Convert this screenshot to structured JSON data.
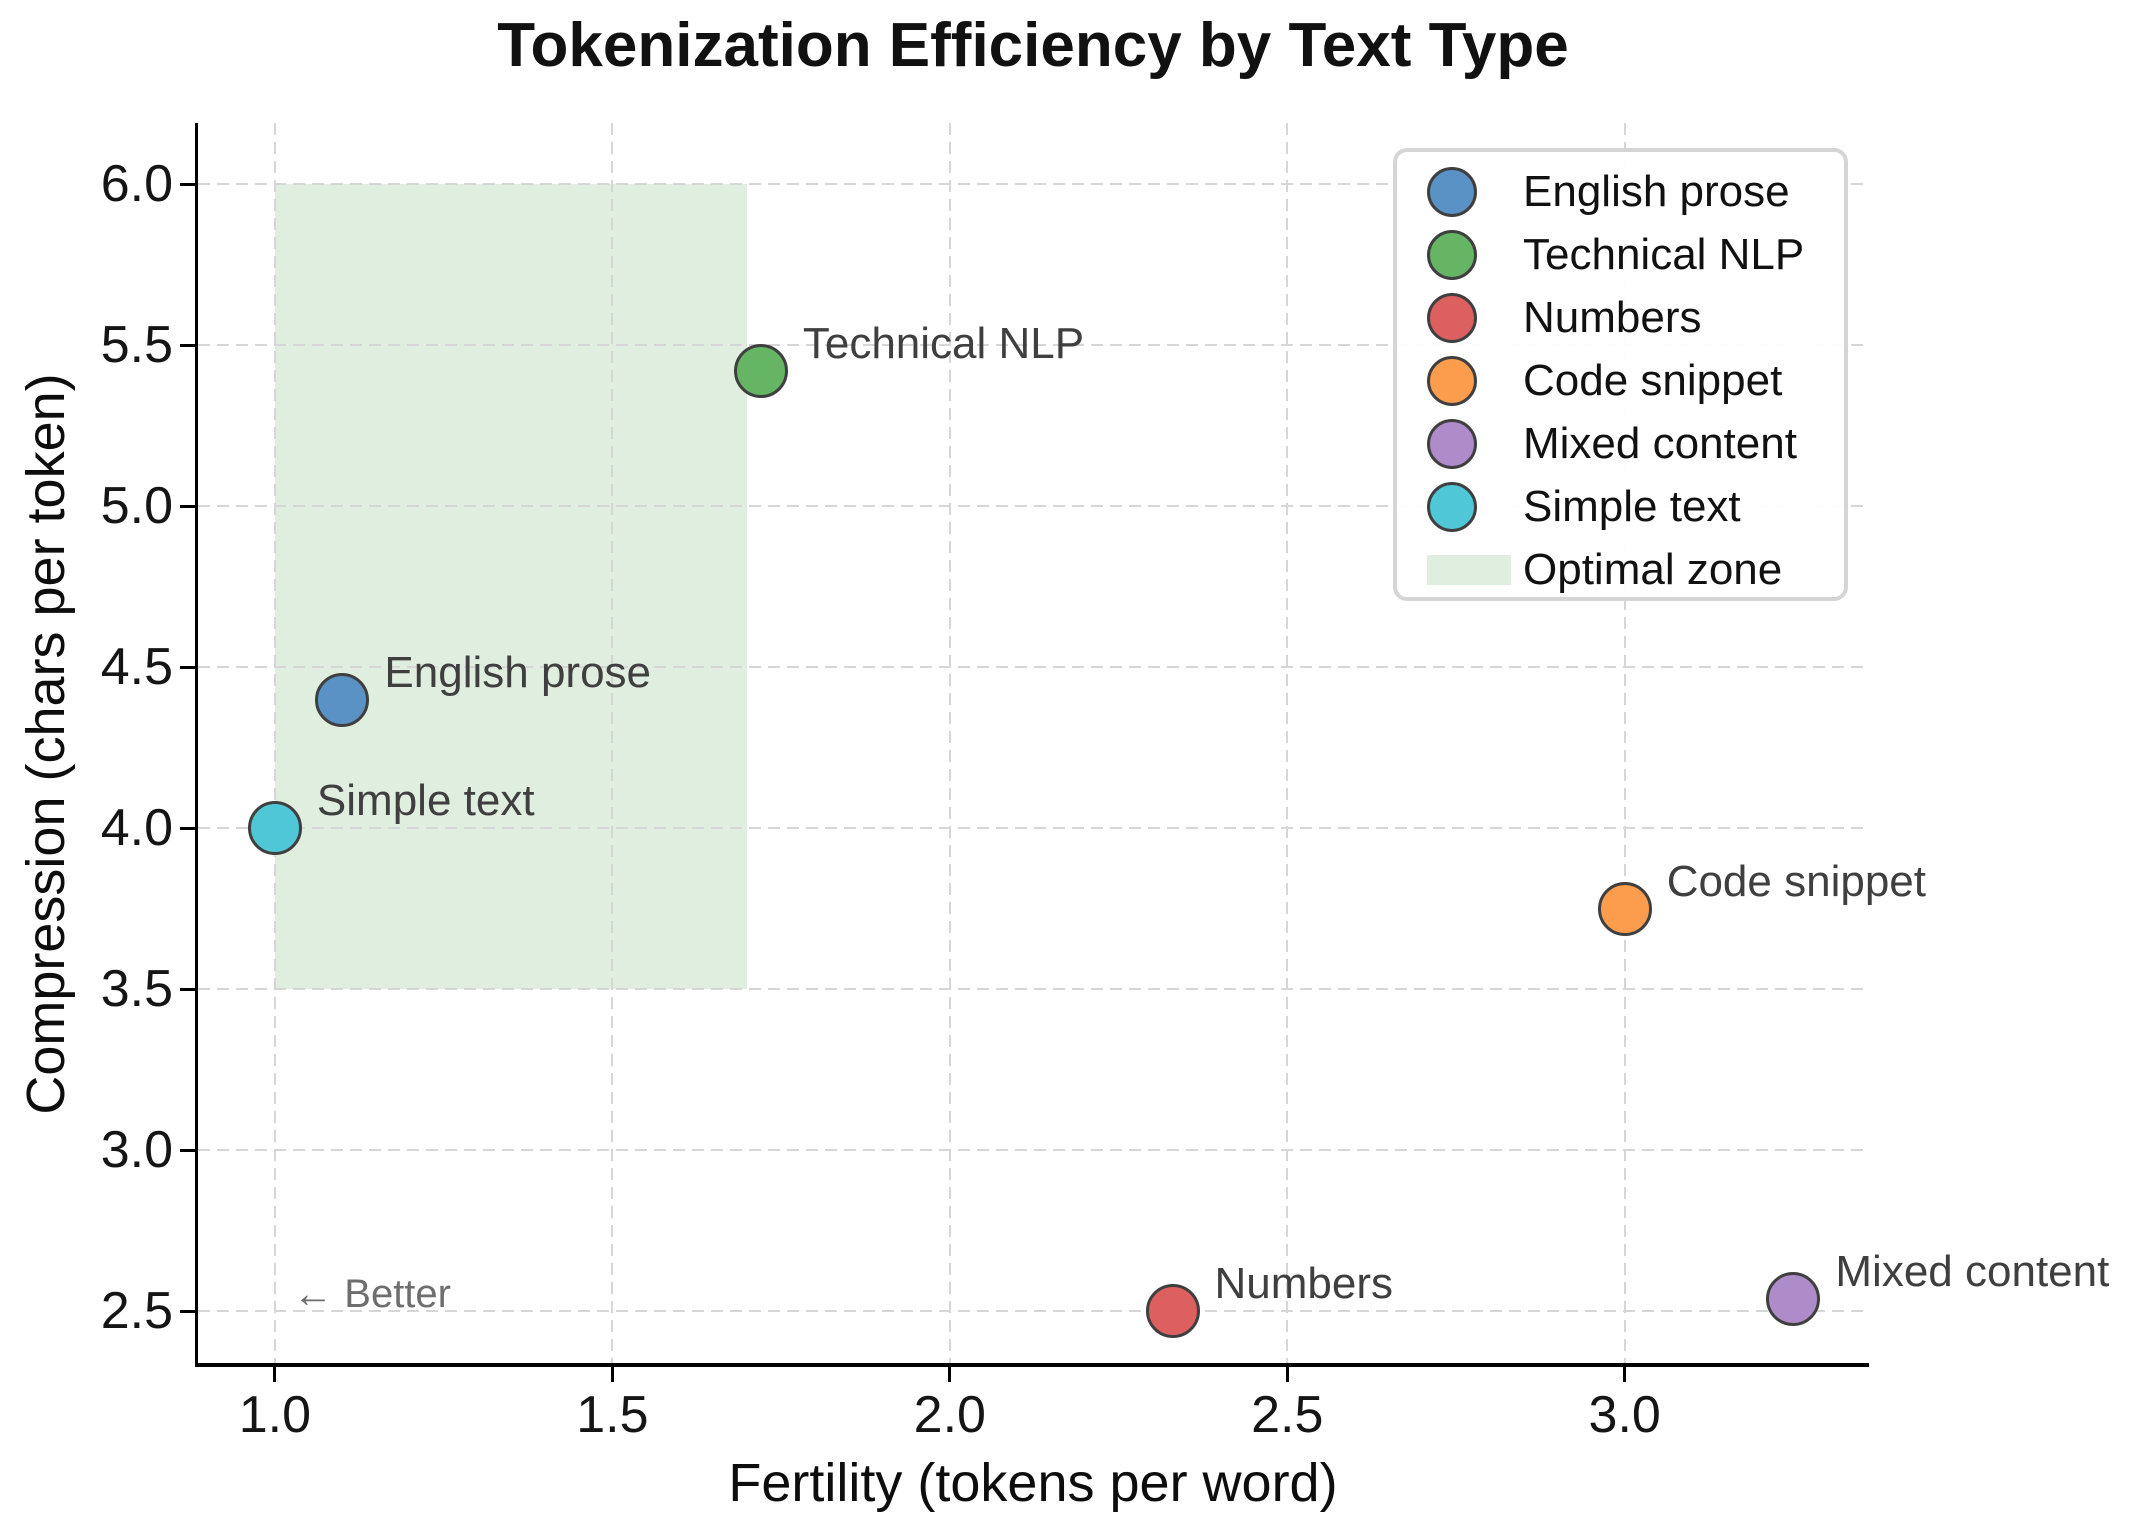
{
  "chart_data": {
    "type": "scatter",
    "title": "Tokenization Efficiency by Text Type",
    "xlabel": "Fertility (tokens per word)",
    "ylabel": "Compression (chars per token)",
    "xlim": [
      0.886,
      3.362
    ],
    "ylim": [
      2.34,
      6.19
    ],
    "x_ticks": [
      1.0,
      1.5,
      2.0,
      2.5,
      3.0
    ],
    "y_ticks": [
      2.5,
      3.0,
      3.5,
      4.0,
      4.5,
      5.0,
      5.5,
      6.0
    ],
    "grid": true,
    "grid_style": "dashed",
    "legend_position": "upper right",
    "points": [
      {
        "label": "English prose",
        "x": 1.1,
        "y": 4.4,
        "color": "#5b92c5"
      },
      {
        "label": "Technical NLP",
        "x": 1.72,
        "y": 5.42,
        "color": "#65b565"
      },
      {
        "label": "Numbers",
        "x": 2.33,
        "y": 2.5,
        "color": "#dc6060"
      },
      {
        "label": "Code snippet",
        "x": 3.0,
        "y": 3.75,
        "color": "#fb9d4c"
      },
      {
        "label": "Mixed content",
        "x": 3.25,
        "y": 2.54,
        "color": "#ae8cca"
      },
      {
        "label": "Simple text",
        "x": 1.0,
        "y": 4.0,
        "color": "#50c7d7"
      }
    ],
    "optimal_zone": {
      "label": "Optimal zone",
      "x0": 1.0,
      "x1": 1.7,
      "y0": 3.5,
      "y1": 6.0,
      "color": "#dfeede"
    },
    "annotation": {
      "text": "← Better",
      "x": 1.027,
      "y": 2.55,
      "color": "#6e6e6e"
    }
  }
}
